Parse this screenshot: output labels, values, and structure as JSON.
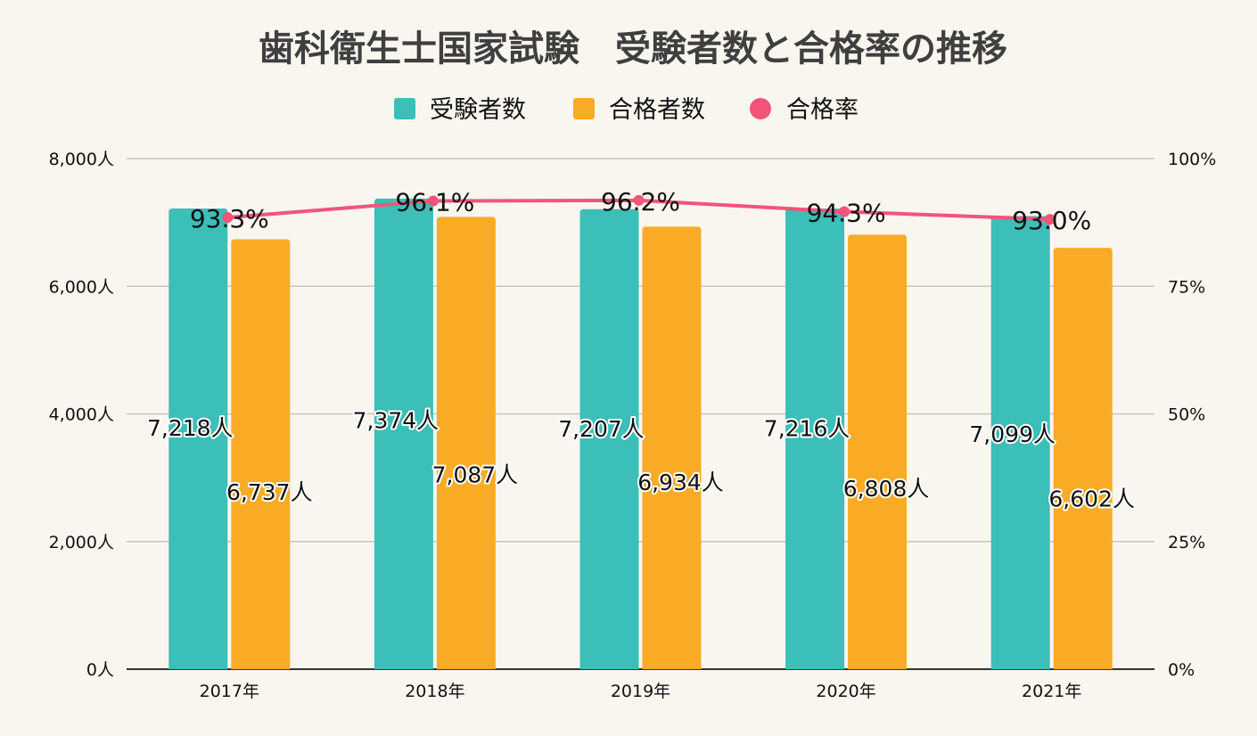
{
  "chart_data": {
    "type": "bar",
    "title": "歯科衛生士国家試験　受験者数と合格率の推移",
    "categories": [
      "2017年",
      "2018年",
      "2019年",
      "2020年",
      "2021年"
    ],
    "series": [
      {
        "name": "受験者数",
        "type": "bar",
        "axis": "left",
        "color": "#3bbfb8",
        "values": [
          7218,
          7374,
          7207,
          7216,
          7099
        ],
        "labels": [
          "7,218人",
          "7,374人",
          "7,207人",
          "7,216人",
          "7,099人"
        ]
      },
      {
        "name": "合格者数",
        "type": "bar",
        "axis": "left",
        "color": "#f9ab25",
        "values": [
          6737,
          7087,
          6934,
          6808,
          6602
        ],
        "labels": [
          "6,737人",
          "7,087人",
          "6,934人",
          "6,808人",
          "6,602人"
        ]
      },
      {
        "name": "合格率",
        "type": "line",
        "axis": "right",
        "color": "#f2547a",
        "values": [
          93.3,
          96.1,
          96.2,
          94.3,
          93.0
        ],
        "labels": [
          "93.3%",
          "96.1%",
          "96.2%",
          "94.3%",
          "93.0%"
        ]
      }
    ],
    "y_left": {
      "range": [
        0,
        8000
      ],
      "ticks": [
        0,
        2000,
        4000,
        6000,
        8000
      ],
      "tick_labels": [
        "0人",
        "2,000人",
        "4,000人",
        "6,000人",
        "8,000人"
      ]
    },
    "y_right": {
      "range": [
        0,
        100
      ],
      "ticks": [
        0,
        25,
        50,
        75,
        100
      ],
      "tick_labels": [
        "0%",
        "25%",
        "50%",
        "75%",
        "100%"
      ]
    },
    "legend": {
      "position": "top-center"
    },
    "grid": true,
    "xlabel": "",
    "ylabel": ""
  }
}
